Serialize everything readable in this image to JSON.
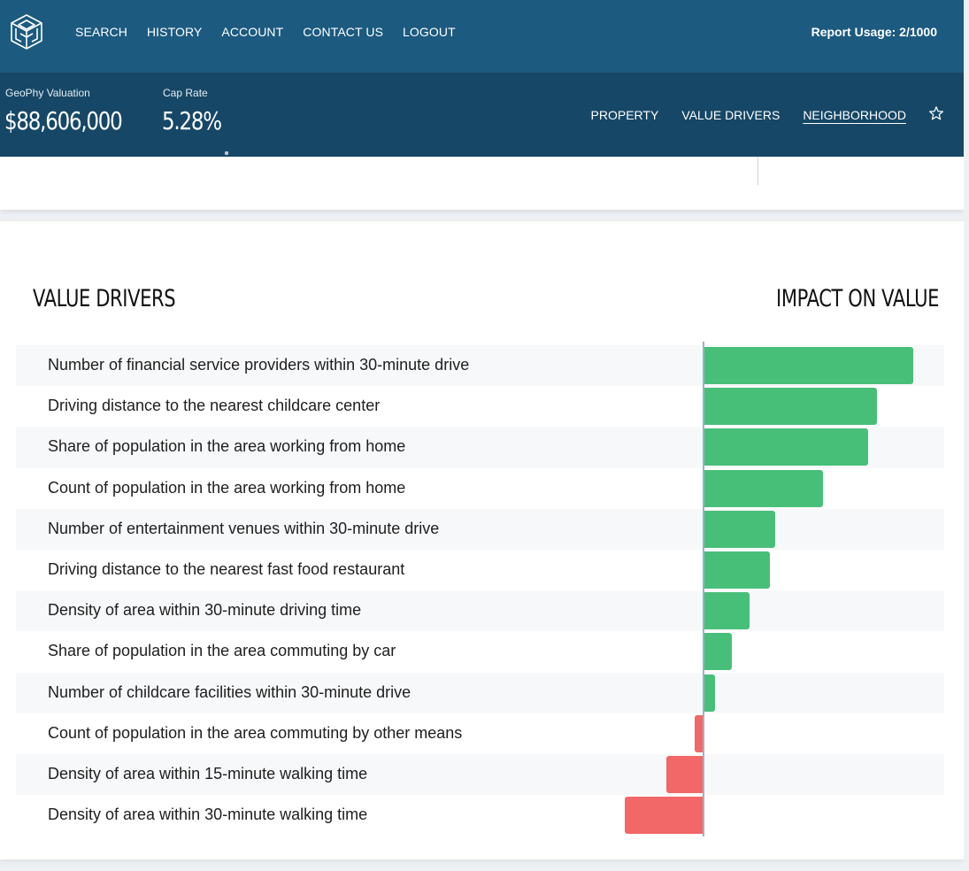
{
  "header": {
    "nav": [
      "SEARCH",
      "HISTORY",
      "ACCOUNT",
      "CONTACT US",
      "LOGOUT"
    ],
    "report_usage": "Report Usage: 2/1000"
  },
  "subheader": {
    "valuation_label": "GeoPhy Valuation",
    "valuation_value": "$88,606,000",
    "cap_rate_label": "Cap Rate",
    "cap_rate_value": "5.28%",
    "tabs": [
      {
        "label": "PROPERTY",
        "active": false
      },
      {
        "label": "VALUE DRIVERS",
        "active": false
      },
      {
        "label": "NEIGHBORHOOD",
        "active": true
      }
    ]
  },
  "value_drivers": {
    "title": "VALUE DRIVERS",
    "impact_title": "IMPACT ON VALUE",
    "colors": {
      "positive": "#48bf79",
      "negative": "#f26767"
    }
  },
  "chart_data": {
    "type": "bar",
    "orientation": "horizontal",
    "categories": [
      "Number of financial service providers within 30-minute drive",
      "Driving distance to the nearest childcare center",
      "Share of population in the area working from home",
      "Count of population in the area working from home",
      "Number of entertainment venues within 30-minute drive",
      "Driving distance to the nearest fast food restaurant",
      "Density of area within 30-minute driving time",
      "Share of population in the area commuting by car",
      "Number of childcare facilities within 30-minute drive",
      "Count of population in the area commuting by other means",
      "Density of area within 15-minute walking time",
      "Density of area within 30-minute walking time"
    ],
    "values": [
      236,
      195,
      185,
      134,
      80,
      74,
      51,
      31,
      12,
      -10,
      -42,
      -89
    ],
    "xlim": [
      -89,
      236
    ]
  }
}
